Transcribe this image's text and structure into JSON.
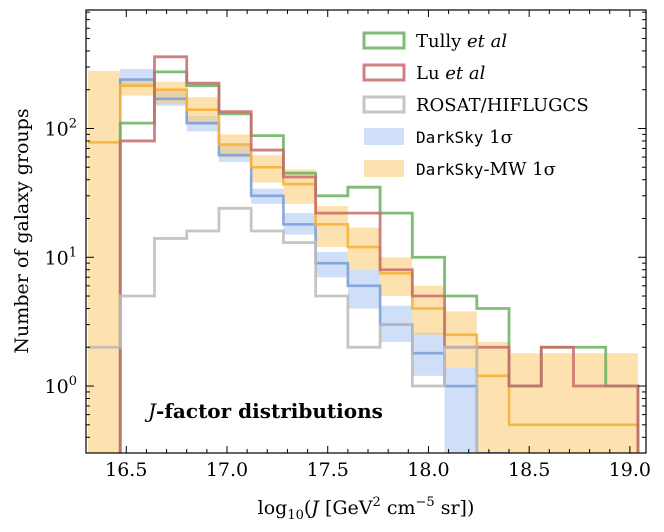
{
  "chart_data": {
    "type": "step-histogram",
    "title": "",
    "annotation": "J-factor distributions",
    "xlabel": "log10(J [GeV2 cm-5 sr])",
    "xlabel_parts": {
      "pre": "log",
      "sub": "10",
      "open": "(",
      "J": "J",
      "bracket_open": " [GeV",
      "sup2": "2",
      "cm": " cm",
      "supm5": "−5",
      "sr": " sr])"
    },
    "ylabel": "Number of galaxy groups",
    "xlim": [
      16.3,
      19.08
    ],
    "ylim_log10": [
      -0.52,
      2.92
    ],
    "yscale": "log",
    "x_ticks": [
      16.5,
      16.6,
      16.7,
      16.8,
      16.9,
      17.0,
      17.1,
      17.2,
      17.3,
      17.4,
      17.5,
      17.6,
      17.7,
      17.8,
      17.9,
      18.0,
      18.1,
      18.2,
      18.3,
      18.4,
      18.5,
      18.6,
      18.7,
      18.8,
      18.9,
      19.0
    ],
    "x_tick_labels": [
      {
        "value": 16.5,
        "label": "16.5"
      },
      {
        "value": 17.0,
        "label": "17.0"
      },
      {
        "value": 17.5,
        "label": "17.5"
      },
      {
        "value": 18.0,
        "label": "18.0"
      },
      {
        "value": 18.5,
        "label": "18.5"
      },
      {
        "value": 19.0,
        "label": "19.0"
      }
    ],
    "y_ticks": [
      {
        "value": 1,
        "base": "10",
        "exp": "0"
      },
      {
        "value": 10,
        "base": "10",
        "exp": "1"
      },
      {
        "value": 100,
        "base": "10",
        "exp": "2"
      }
    ],
    "bin_edges": [
      16.31,
      16.47,
      16.64,
      16.8,
      16.96,
      17.12,
      17.28,
      17.44,
      17.6,
      17.76,
      17.92,
      18.08,
      18.24,
      18.4,
      18.56,
      18.72,
      18.88,
      19.04
    ],
    "series": [
      {
        "name": "Tully et al",
        "color": "#6aaf5f",
        "values": [
          0,
          110,
          275,
          215,
          130,
          88,
          45,
          30,
          35,
          22,
          10,
          5,
          4,
          1,
          2,
          2,
          1
        ]
      },
      {
        "name": "Lu et al",
        "color": "#c96a6a",
        "values": [
          0,
          80,
          360,
          225,
          135,
          68,
          42,
          22,
          22,
          8,
          5,
          2,
          2,
          1,
          2,
          1,
          1
        ]
      },
      {
        "name": "ROSAT/HIFLUGCS",
        "color": "#bbbbbb",
        "values": [
          2,
          5,
          14,
          16,
          24,
          16,
          13,
          5,
          2,
          3,
          1,
          2,
          0,
          0,
          0,
          0,
          0
        ]
      }
    ],
    "bands": [
      {
        "name": "DarkSky 1σ",
        "name_mono": "DarkSky",
        "name_rest": " 1σ",
        "color": "#a8c4f0",
        "median": [
          0,
          240,
          170,
          110,
          62,
          30,
          18,
          9,
          6,
          3,
          1.8,
          1,
          0.3,
          0,
          0,
          0,
          0
        ],
        "low": [
          0,
          210,
          150,
          95,
          55,
          26,
          15,
          7,
          4,
          2.2,
          1.2,
          0.3,
          0.3,
          0,
          0,
          0,
          0
        ],
        "high": [
          0,
          290,
          195,
          125,
          75,
          34,
          22,
          11,
          8,
          4.2,
          2.6,
          1.4,
          0.3,
          0,
          0,
          0,
          0
        ]
      },
      {
        "name": "DarkSky-MW 1σ",
        "name_mono": "DarkSky",
        "name_rest": "-MW 1σ",
        "color": "#fcc96b",
        "median": [
          78,
          215,
          200,
          140,
          75,
          50,
          37,
          18,
          12,
          7.5,
          4,
          2.5,
          1.2,
          0.5,
          0.5,
          0.5,
          0.5
        ],
        "low": [
          0.3,
          180,
          155,
          110,
          60,
          38,
          26,
          12,
          8,
          5,
          2.5,
          1.4,
          0.3,
          0.3,
          0.3,
          0.3,
          0.3
        ],
        "high": [
          280,
          240,
          230,
          175,
          90,
          62,
          48,
          25,
          17,
          10,
          6,
          3.8,
          2.2,
          1.8,
          1.8,
          1.8,
          1.8
        ]
      }
    ],
    "legend_position": "upper-right",
    "legend": [
      {
        "label_pre": "Tully ",
        "label_it": "et al",
        "label_mono": "",
        "label_post": "",
        "kind": "line",
        "color": "#6aaf5f"
      },
      {
        "label_pre": "Lu ",
        "label_it": "et al",
        "label_mono": "",
        "label_post": "",
        "kind": "line",
        "color": "#c96a6a"
      },
      {
        "label_pre": "ROSAT/HIFLUGCS",
        "label_it": "",
        "label_mono": "",
        "label_post": "",
        "kind": "line",
        "color": "#bbbbbb"
      },
      {
        "label_pre": "",
        "label_it": "",
        "label_mono": "DarkSky",
        "label_post": " 1σ",
        "kind": "band",
        "color": "#a8c4f0"
      },
      {
        "label_pre": "",
        "label_it": "",
        "label_mono": "DarkSky",
        "label_post": "-MW 1σ",
        "kind": "band",
        "color": "#fcc96b"
      }
    ]
  }
}
